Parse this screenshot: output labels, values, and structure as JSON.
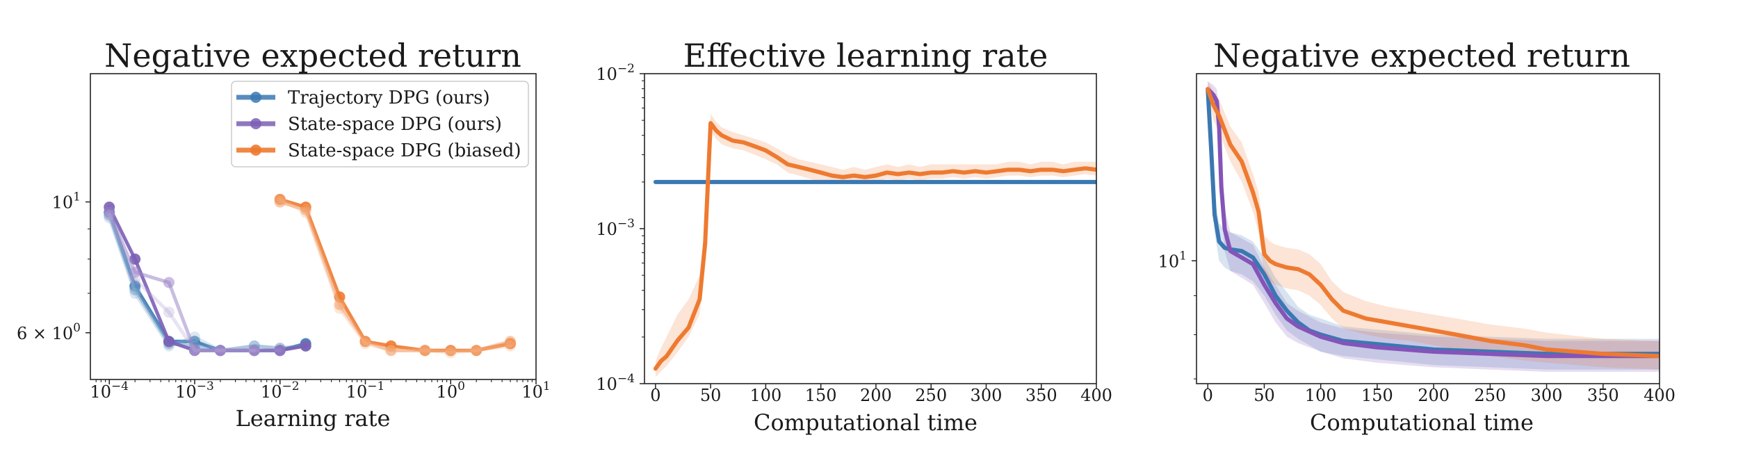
{
  "figure": {
    "panels": [
      {
        "title": "Negative expected return",
        "xlabel": "Learning rate",
        "ylabel": ""
      },
      {
        "title": "Effective learning rate",
        "xlabel": "Computational time",
        "ylabel": ""
      },
      {
        "title": "Negative expected return",
        "xlabel": "Computational time",
        "ylabel": ""
      }
    ],
    "legend": {
      "entries": [
        "Trajectory DPG (ours)",
        "State-space DPG (ours)",
        "State-space DPG (biased)"
      ],
      "placement": "top-right of first panel"
    }
  },
  "colors": {
    "trajectory": "#3a78b2",
    "statespace": "#7b5fb5",
    "biased": "#ee7a30",
    "axis": "#222222"
  },
  "chart_data": [
    {
      "type": "line",
      "title": "Negative expected return",
      "xlabel": "Learning rate",
      "xscale": "log",
      "yscale": "log",
      "xlim": [
        6e-05,
        10
      ],
      "ylim": [
        5.0,
        16.5
      ],
      "xticks": [
        {
          "value": 0.0001,
          "label_base": "10",
          "label_exp": "−4"
        },
        {
          "value": 0.001,
          "label_base": "10",
          "label_exp": "−3"
        },
        {
          "value": 0.01,
          "label_base": "10",
          "label_exp": "−2"
        },
        {
          "value": 0.1,
          "label_base": "10",
          "label_exp": "−1"
        },
        {
          "value": 1,
          "label_base": "10",
          "label_exp": "0"
        },
        {
          "value": 10,
          "label_base": "10",
          "label_exp": "1"
        }
      ],
      "yticks": [
        {
          "value": 10,
          "label_base": "10",
          "label_exp": "1"
        },
        {
          "value": 6,
          "label_base": "6 × 10",
          "label_exp": "0"
        }
      ],
      "grid": false,
      "series": [
        {
          "name": "Trajectory DPG (ours)",
          "color": "#3a78b2",
          "shade": "dark",
          "x": [
            0.0001,
            0.0002,
            0.0005,
            0.001,
            0.002,
            0.005,
            0.01,
            0.02
          ],
          "y": [
            9.6,
            7.2,
            5.8,
            5.8,
            5.6,
            5.6,
            5.6,
            5.75
          ]
        },
        {
          "name": "",
          "color": "#3a78b2",
          "shade": "mid",
          "x": [
            0.0001,
            0.0002,
            0.0005,
            0.001,
            0.002,
            0.005,
            0.01,
            0.02
          ],
          "y": [
            9.5,
            7.1,
            5.75,
            5.7,
            5.6,
            5.7,
            5.65,
            5.7
          ]
        },
        {
          "name": "",
          "color": "#3a78b2",
          "shade": "light",
          "x": [
            0.0001,
            0.0002,
            0.0005,
            0.001,
            0.002,
            0.005,
            0.01,
            0.02
          ],
          "y": [
            9.4,
            7.0,
            5.7,
            5.9,
            5.6,
            5.6,
            5.6,
            5.7
          ]
        },
        {
          "name": "State-space DPG (ours)",
          "color": "#7b5fb5",
          "shade": "dark",
          "x": [
            0.0001,
            0.0002,
            0.0005,
            0.001,
            0.002,
            0.005,
            0.01,
            0.02
          ],
          "y": [
            9.8,
            8.0,
            5.8,
            5.6,
            5.6,
            5.6,
            5.6,
            5.7
          ]
        },
        {
          "name": "",
          "color": "#7b5fb5",
          "shade": "mid",
          "x": [
            0.0001,
            0.0002,
            0.0005,
            0.001,
            0.002,
            0.005,
            0.01
          ],
          "y": [
            9.6,
            7.6,
            7.3,
            5.6,
            5.6,
            5.6,
            5.6
          ]
        },
        {
          "name": "",
          "color": "#7b5fb5",
          "shade": "light",
          "x": [
            0.0001,
            0.0002,
            0.0005,
            0.001,
            0.002,
            0.005
          ],
          "y": [
            9.5,
            7.4,
            6.5,
            5.6,
            5.6,
            5.6
          ]
        },
        {
          "name": "State-space DPG (biased)",
          "color": "#ee7a30",
          "shade": "dark",
          "x": [
            0.01,
            0.02,
            0.05,
            0.1,
            0.2,
            0.5,
            1,
            2,
            5
          ],
          "y": [
            10.1,
            9.8,
            6.9,
            5.8,
            5.7,
            5.6,
            5.6,
            5.6,
            5.75
          ]
        },
        {
          "name": "",
          "color": "#ee7a30",
          "shade": "mid",
          "x": [
            0.01,
            0.02,
            0.05,
            0.1,
            0.2,
            0.5,
            1,
            2,
            5
          ],
          "y": [
            10.0,
            9.7,
            6.7,
            5.8,
            5.6,
            5.6,
            5.6,
            5.6,
            5.8
          ]
        },
        {
          "name": "",
          "color": "#ee7a30",
          "shade": "light",
          "x": [
            0.01,
            0.02,
            0.05,
            0.1,
            0.2,
            0.5,
            1,
            2,
            5
          ],
          "y": [
            10.1,
            9.6,
            6.6,
            5.75,
            5.6,
            5.6,
            5.55,
            5.6,
            5.7
          ]
        }
      ]
    },
    {
      "type": "line",
      "title": "Effective learning rate",
      "xlabel": "Computational time",
      "xscale": "linear",
      "yscale": "log",
      "xlim": [
        -10,
        400
      ],
      "ylim": [
        0.0001,
        0.01
      ],
      "xticks": [
        0,
        50,
        100,
        150,
        200,
        250,
        300,
        350,
        400
      ],
      "yticks": [
        {
          "value": 0.01,
          "label_base": "10",
          "label_exp": "−2"
        },
        {
          "value": 0.001,
          "label_base": "10",
          "label_exp": "−3"
        },
        {
          "value": 0.0001,
          "label_base": "10",
          "label_exp": "−4"
        }
      ],
      "grid": false,
      "series": [
        {
          "name": "Trajectory DPG (ours)",
          "color": "#3a78b2",
          "x": [
            0,
            400
          ],
          "y": [
            0.002,
            0.002
          ]
        },
        {
          "name": "State-space DPG (biased)",
          "color": "#ee7a30",
          "x": [
            0,
            5,
            10,
            20,
            30,
            40,
            45,
            50,
            55,
            60,
            70,
            80,
            90,
            100,
            110,
            120,
            130,
            140,
            150,
            160,
            170,
            180,
            190,
            200,
            210,
            220,
            230,
            240,
            250,
            260,
            270,
            280,
            290,
            300,
            310,
            320,
            330,
            340,
            350,
            360,
            370,
            380,
            390,
            400
          ],
          "y": [
            0.000125,
            0.00014,
            0.00015,
            0.00019,
            0.00023,
            0.00035,
            0.0008,
            0.0048,
            0.0043,
            0.004,
            0.0037,
            0.0036,
            0.0034,
            0.0032,
            0.0029,
            0.0026,
            0.0025,
            0.0024,
            0.0023,
            0.0022,
            0.00215,
            0.0022,
            0.00215,
            0.0022,
            0.0023,
            0.00225,
            0.0023,
            0.00225,
            0.0023,
            0.0023,
            0.00235,
            0.0023,
            0.00235,
            0.0023,
            0.00235,
            0.0024,
            0.0024,
            0.00235,
            0.0024,
            0.0024,
            0.00235,
            0.0024,
            0.00245,
            0.0024
          ],
          "band_lower": [
            0.00011,
            0.00012,
            0.00013,
            0.00016,
            0.0002,
            0.00028,
            0.0006,
            0.0042,
            0.0038,
            0.0035,
            0.0033,
            0.0032,
            0.003,
            0.0028,
            0.0026,
            0.0023,
            0.0022,
            0.0021,
            0.002,
            0.002,
            0.00195,
            0.002,
            0.00195,
            0.002,
            0.0021,
            0.00205,
            0.0021,
            0.00205,
            0.0021,
            0.0021,
            0.00215,
            0.0021,
            0.00215,
            0.0021,
            0.00215,
            0.0022,
            0.0022,
            0.00215,
            0.0022,
            0.0022,
            0.00215,
            0.0022,
            0.00225,
            0.0022
          ],
          "band_upper": [
            0.00014,
            0.00017,
            0.0002,
            0.00028,
            0.00035,
            0.0005,
            0.0011,
            0.0055,
            0.0049,
            0.0045,
            0.0042,
            0.004,
            0.0038,
            0.0036,
            0.0033,
            0.003,
            0.0028,
            0.0027,
            0.0026,
            0.0025,
            0.0024,
            0.0025,
            0.0024,
            0.0025,
            0.0026,
            0.0025,
            0.0026,
            0.0025,
            0.0026,
            0.0026,
            0.0026,
            0.0026,
            0.0026,
            0.0026,
            0.0026,
            0.0027,
            0.0027,
            0.0026,
            0.0027,
            0.0027,
            0.0026,
            0.0027,
            0.0027,
            0.0027
          ]
        }
      ]
    },
    {
      "type": "line",
      "title": "Negative expected return",
      "xlabel": "Computational time",
      "xscale": "linear",
      "yscale": "log",
      "xlim": [
        -10,
        400
      ],
      "ylim": [
        6.9,
        17.6
      ],
      "xticks": [
        0,
        50,
        100,
        150,
        200,
        250,
        300,
        350,
        400
      ],
      "yticks": [
        {
          "value": 10,
          "label_base": "10",
          "label_exp": "1"
        }
      ],
      "grid": false,
      "series": [
        {
          "name": "Trajectory DPG (ours)",
          "color": "#3a78b2",
          "x": [
            0,
            3,
            6,
            10,
            15,
            20,
            30,
            40,
            50,
            60,
            70,
            80,
            90,
            100,
            120,
            140,
            160,
            180,
            200,
            250,
            300,
            350,
            400
          ],
          "y": [
            16.8,
            14.0,
            11.5,
            10.6,
            10.4,
            10.35,
            10.3,
            10.1,
            9.6,
            9.0,
            8.6,
            8.3,
            8.1,
            8.0,
            7.85,
            7.8,
            7.75,
            7.7,
            7.65,
            7.6,
            7.55,
            7.55,
            7.55
          ],
          "band_lower": [
            16.3,
            13.4,
            10.9,
            10.0,
            9.8,
            9.7,
            9.6,
            9.4,
            9.0,
            8.5,
            8.1,
            7.9,
            7.75,
            7.6,
            7.5,
            7.45,
            7.4,
            7.35,
            7.3,
            7.25,
            7.2,
            7.2,
            7.2
          ],
          "band_upper": [
            17.2,
            14.6,
            12.1,
            11.2,
            11.0,
            10.9,
            10.8,
            10.6,
            10.1,
            9.5,
            9.1,
            8.7,
            8.5,
            8.4,
            8.2,
            8.15,
            8.1,
            8.05,
            8.0,
            7.95,
            7.9,
            7.9,
            7.9
          ]
        },
        {
          "name": "State-space DPG (ours)",
          "color": "#8454b8",
          "x": [
            0,
            5,
            8,
            10,
            12,
            15,
            20,
            30,
            40,
            50,
            60,
            70,
            80,
            100,
            120,
            150,
            200,
            250,
            300,
            350,
            400
          ],
          "y": [
            16.8,
            16.5,
            16.2,
            15.0,
            12.5,
            11.0,
            10.3,
            10.1,
            9.9,
            9.3,
            8.8,
            8.4,
            8.2,
            7.95,
            7.8,
            7.7,
            7.6,
            7.55,
            7.5,
            7.5,
            7.5
          ],
          "band_lower": [
            16.3,
            16.0,
            15.6,
            14.2,
            11.8,
            10.3,
            9.7,
            9.5,
            9.3,
            8.8,
            8.3,
            7.95,
            7.8,
            7.6,
            7.45,
            7.35,
            7.25,
            7.2,
            7.15,
            7.15,
            7.15
          ],
          "band_upper": [
            17.2,
            17.0,
            16.8,
            15.8,
            13.2,
            11.7,
            10.9,
            10.7,
            10.5,
            9.8,
            9.3,
            8.8,
            8.6,
            8.3,
            8.15,
            8.05,
            7.95,
            7.9,
            7.85,
            7.85,
            7.85
          ]
        },
        {
          "name": "State-space DPG (biased)",
          "color": "#ee7a30",
          "x": [
            0,
            5,
            10,
            20,
            30,
            40,
            45,
            50,
            55,
            60,
            70,
            80,
            90,
            100,
            110,
            120,
            140,
            160,
            180,
            200,
            220,
            250,
            280,
            300,
            350,
            400
          ],
          "y": [
            16.8,
            16.0,
            15.5,
            14.2,
            13.5,
            12.3,
            11.6,
            10.2,
            10.0,
            9.9,
            9.8,
            9.75,
            9.6,
            9.3,
            8.9,
            8.6,
            8.4,
            8.3,
            8.2,
            8.1,
            8.0,
            7.85,
            7.75,
            7.65,
            7.55,
            7.5
          ],
          "band_lower": [
            16.3,
            15.3,
            14.7,
            13.5,
            12.7,
            11.6,
            10.9,
            9.6,
            9.4,
            9.3,
            9.2,
            9.15,
            9.0,
            8.75,
            8.4,
            8.15,
            8.0,
            7.9,
            7.85,
            7.75,
            7.65,
            7.5,
            7.4,
            7.35,
            7.25,
            7.2
          ],
          "band_upper": [
            17.2,
            16.7,
            16.3,
            15.0,
            14.3,
            13.0,
            12.3,
            10.8,
            10.6,
            10.5,
            10.4,
            10.35,
            10.2,
            9.9,
            9.4,
            9.1,
            8.85,
            8.7,
            8.6,
            8.5,
            8.4,
            8.25,
            8.15,
            8.05,
            7.9,
            7.85
          ]
        }
      ]
    }
  ]
}
